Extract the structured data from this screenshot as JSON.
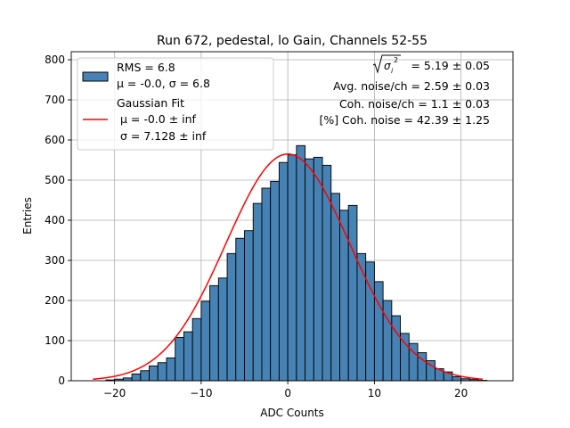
{
  "chart_data": {
    "type": "bar",
    "title": "Run 672, pedestal, lo Gain, Channels 52-55",
    "xlabel": "ADC Counts",
    "ylabel": "Entries",
    "xlim": [
      -25,
      26
    ],
    "ylim": [
      0,
      820
    ],
    "x_ticks": [
      -20,
      -10,
      0,
      10,
      20
    ],
    "x_tick_labels": [
      "−20",
      "−10",
      "0",
      "10",
      "20"
    ],
    "y_ticks": [
      0,
      100,
      200,
      300,
      400,
      500,
      600,
      700,
      800
    ],
    "y_tick_labels": [
      "0",
      "100",
      "200",
      "300",
      "400",
      "500",
      "600",
      "700",
      "800"
    ],
    "grid": true,
    "legend_position": "top-left",
    "bar_color": "#4682b4",
    "fit_color": "#ff0000",
    "bin_width": 1,
    "histogram": {
      "bin_starts": [
        -21,
        -20,
        -19,
        -18,
        -17,
        -16,
        -15,
        -14,
        -13,
        -12,
        -11,
        -10,
        -9,
        -8,
        -7,
        -6,
        -5,
        -4,
        -3,
        -2,
        -1,
        0,
        1,
        2,
        3,
        4,
        5,
        6,
        7,
        8,
        9,
        10,
        11,
        12,
        13,
        14,
        15,
        16,
        17,
        18,
        19,
        20,
        21,
        22
      ],
      "counts": [
        2,
        4,
        7,
        17,
        25,
        37,
        45,
        57,
        108,
        122,
        155,
        198,
        237,
        256,
        317,
        355,
        374,
        442,
        480,
        497,
        544,
        563,
        586,
        553,
        557,
        537,
        467,
        425,
        437,
        317,
        296,
        247,
        200,
        162,
        118,
        93,
        70,
        50,
        30,
        22,
        10,
        5,
        3,
        1
      ]
    },
    "fit": {
      "name": "Gaussian Fit",
      "amplitude": 565,
      "mu": 0.0,
      "sigma": 7.128,
      "x_range": [
        -22.5,
        22.5
      ]
    },
    "legend": {
      "hist_label_1": "RMS = 6.8",
      "hist_label_2": "μ = -0.0, σ = 6.8",
      "fit_label_1": "Gaussian Fit",
      "fit_label_2": " μ = -0.0 ± inf",
      "fit_label_3": " σ = 7.128 ± inf"
    },
    "annotations": {
      "sqrt_value": " = 5.19 ± 0.05",
      "avg_noise": "Avg. noise/ch = 2.59 ± 0.03",
      "coh_noise": "Coh. noise/ch = 1.1 ± 0.03",
      "coh_pct": "[%] Coh. noise = 42.39 ± 1.25"
    }
  }
}
